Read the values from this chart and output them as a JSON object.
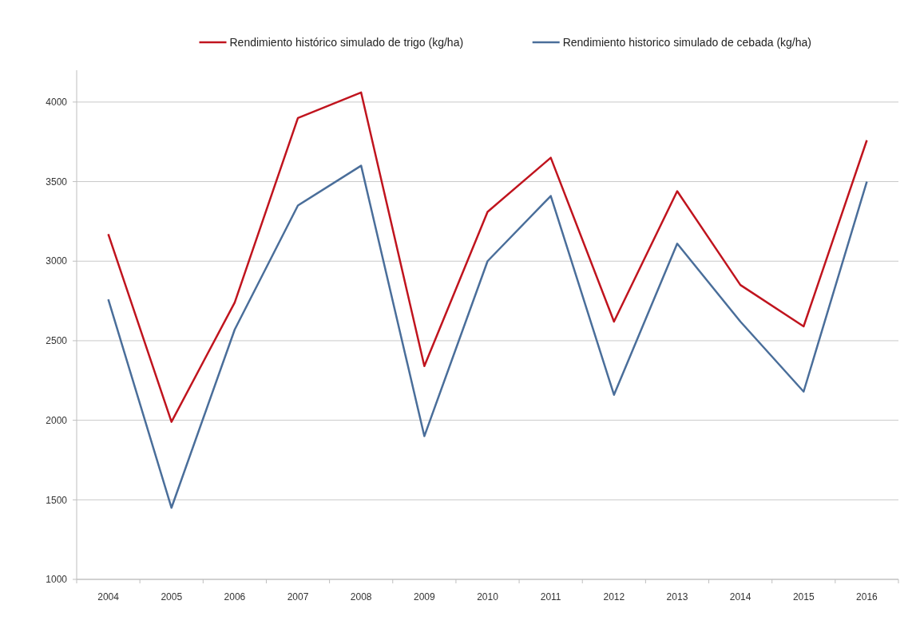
{
  "chart_data": {
    "type": "line",
    "categories": [
      "2004",
      "2005",
      "2006",
      "2007",
      "2008",
      "2009",
      "2010",
      "2011",
      "2012",
      "2013",
      "2014",
      "2015",
      "2016"
    ],
    "series": [
      {
        "name": "Rendimiento histórico simulado de trigo (kg/ha)",
        "color": "#c0141e",
        "values": [
          3170,
          1990,
          2740,
          3900,
          4060,
          2340,
          3310,
          3650,
          2620,
          3440,
          2850,
          2590,
          3760
        ]
      },
      {
        "name": "Rendimiento historico simulado de cebada (kg/ha)",
        "color": "#4a6e9a",
        "values": [
          2760,
          1450,
          2570,
          3350,
          3600,
          1900,
          3000,
          3410,
          2160,
          3110,
          2620,
          2180,
          3500
        ]
      }
    ],
    "ylim": [
      1000,
      4200
    ],
    "yticks": [
      1000,
      1500,
      2000,
      2500,
      3000,
      3500,
      4000
    ],
    "grid": "y",
    "legend": "top",
    "marker": "none",
    "line_style": "solid"
  }
}
